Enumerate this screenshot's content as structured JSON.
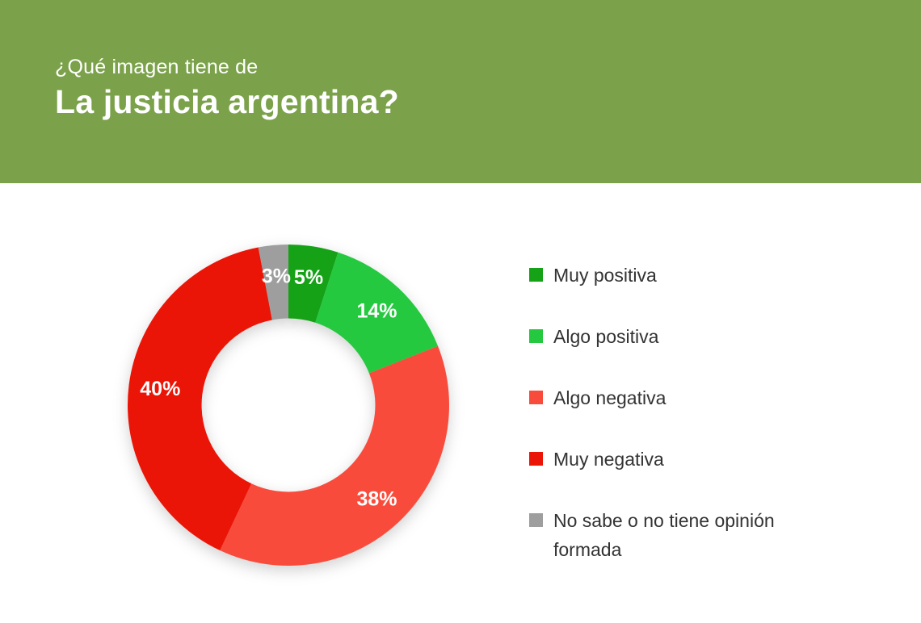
{
  "header": {
    "subtitle": "¿Qué imagen tiene de",
    "title": "La justicia argentina?",
    "background_color": "#7BA24A",
    "text_color": "#FFFFFF"
  },
  "chart_data": {
    "type": "pie",
    "variant": "donut",
    "title": "¿Qué imagen tiene de La justicia argentina?",
    "categories": [
      "Muy positiva",
      "Algo positiva",
      "Algo negativa",
      "Muy negativa",
      "No sabe o no tiene opinión formada"
    ],
    "values": [
      5,
      14,
      38,
      40,
      3
    ],
    "unit": "%",
    "data_labels": [
      "5%",
      "14%",
      "38%",
      "40%",
      "3%"
    ],
    "colors": [
      "#16A216",
      "#25C93F",
      "#F94B3B",
      "#EB1507",
      "#9E9E9E"
    ],
    "start_angle_deg": 0,
    "direction": "clockwise",
    "inner_radius_ratio": 0.54,
    "legend_position": "right",
    "data_label_color": "#FFFFFF",
    "grid": false
  }
}
